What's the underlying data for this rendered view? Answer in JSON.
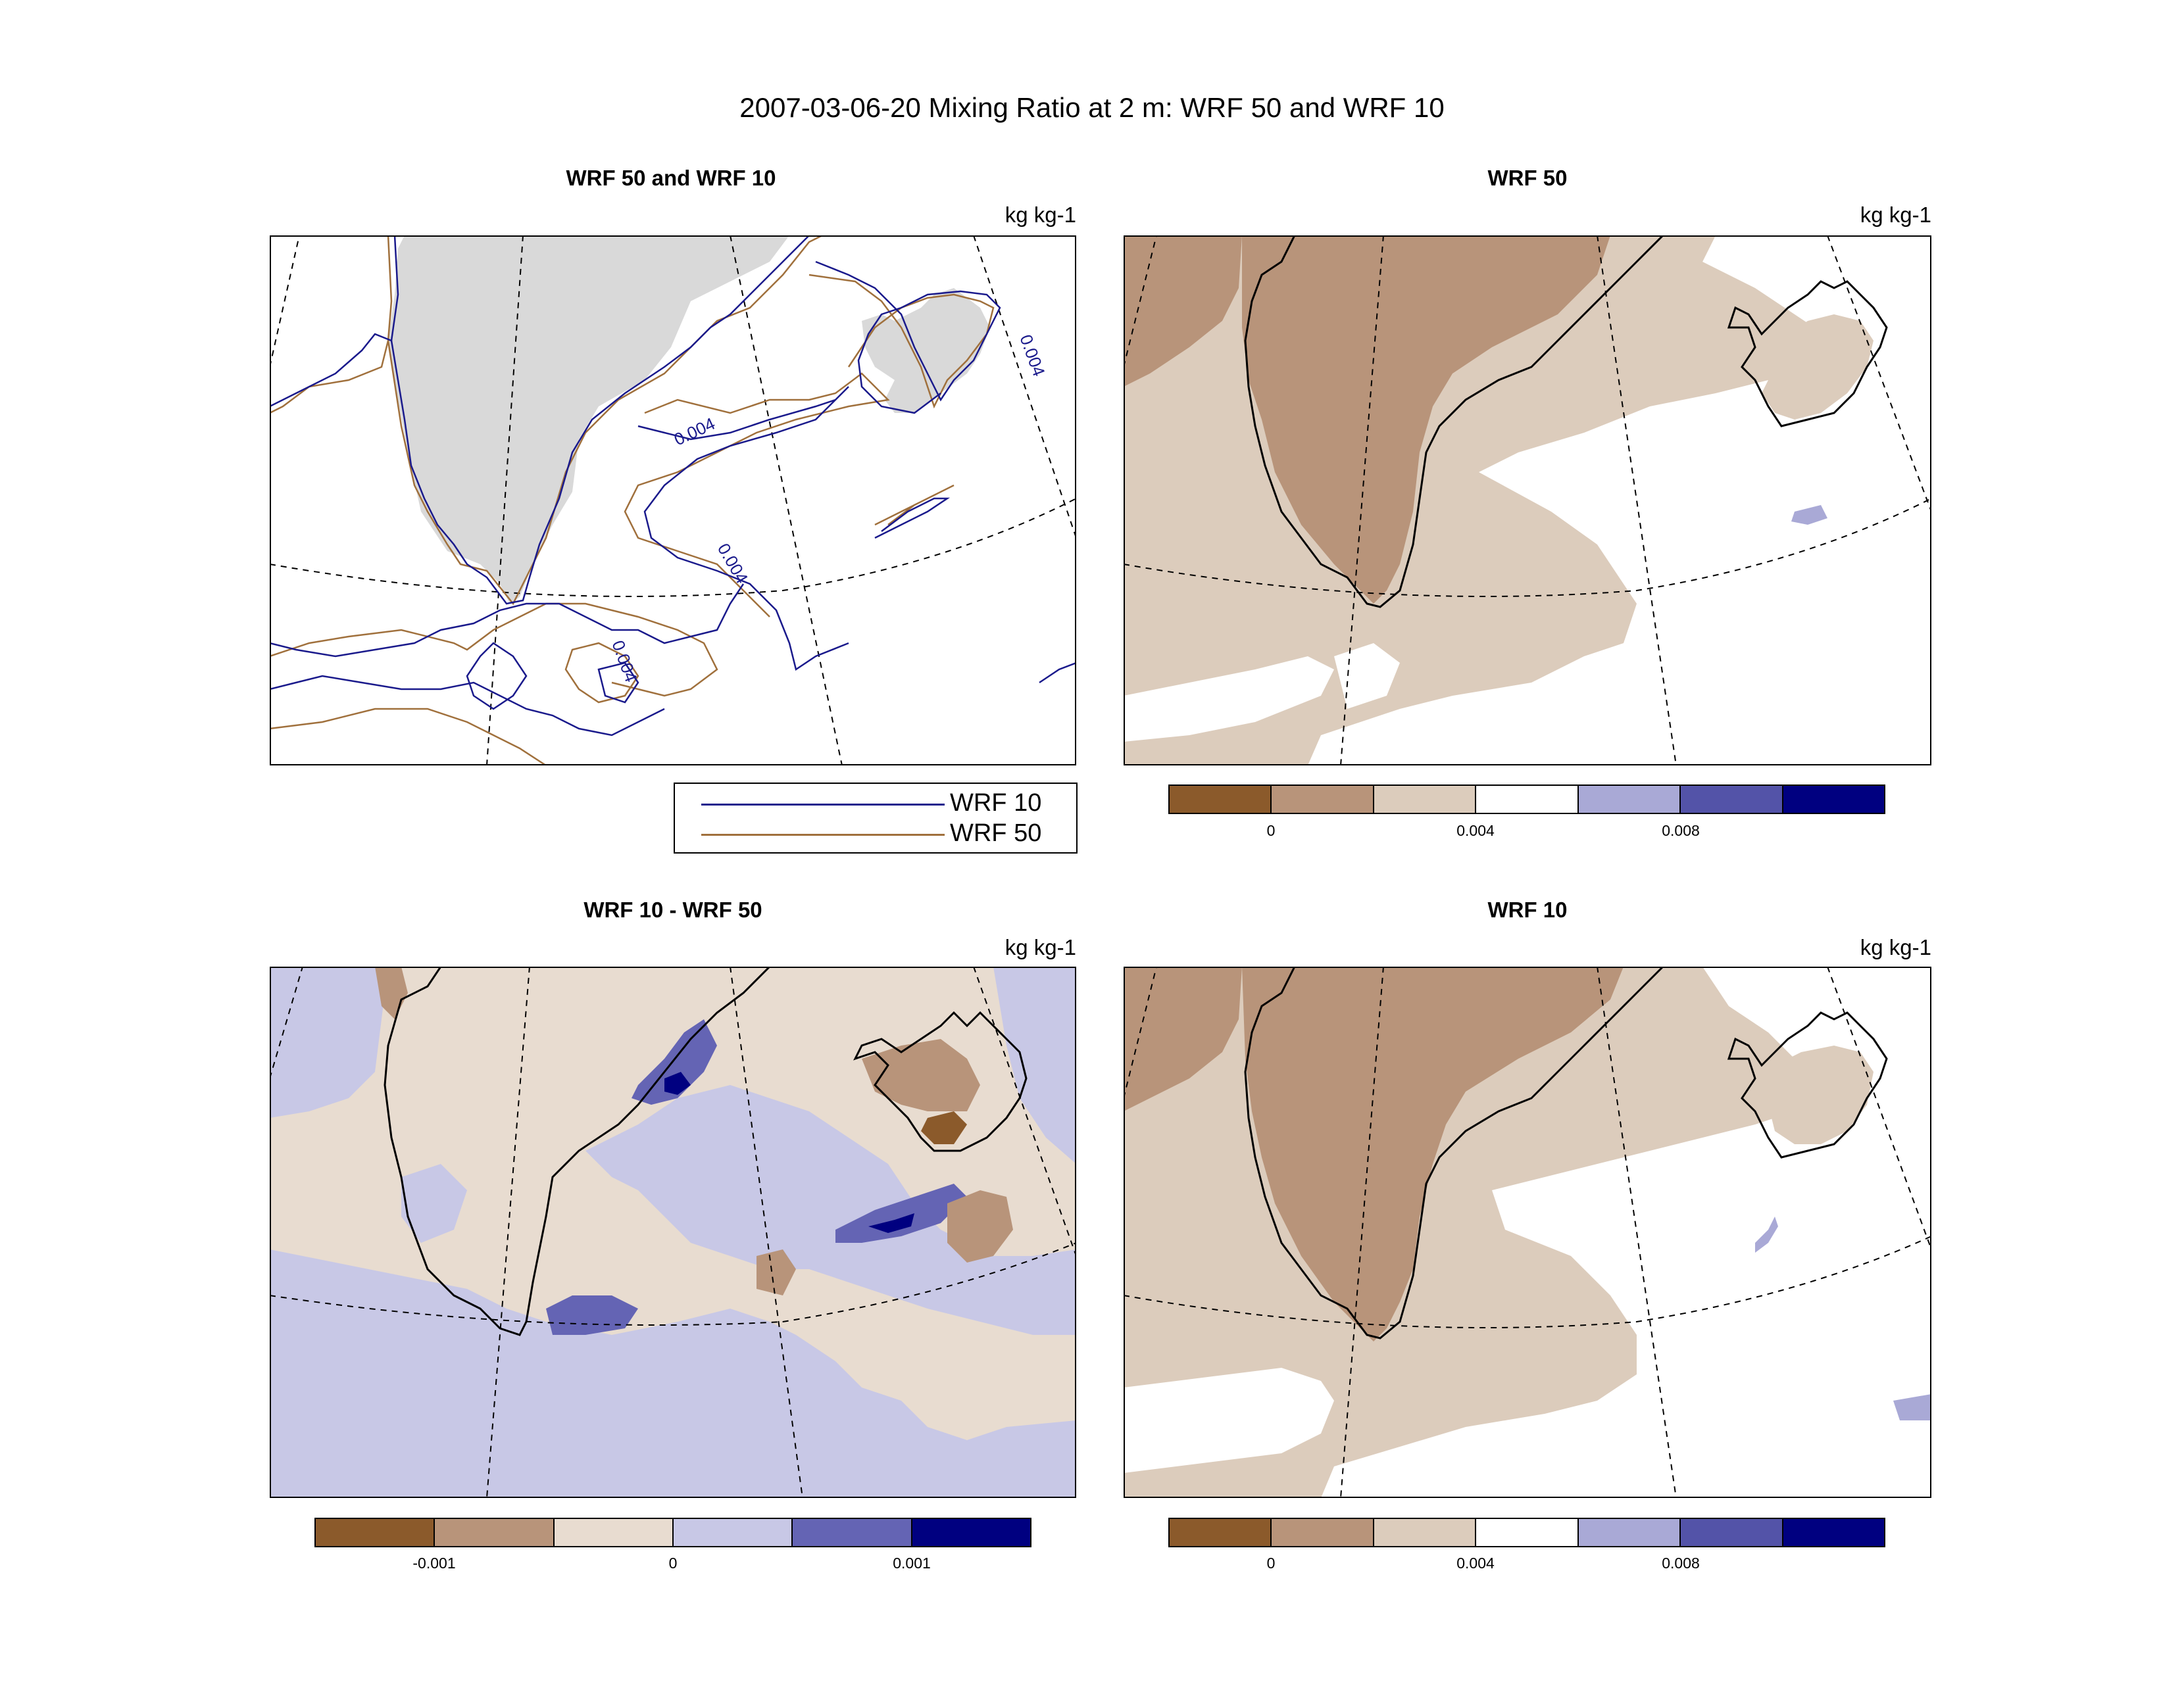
{
  "figure_title": "2007-03-06-20 Mixing Ratio at 2 m: WRF 50 and WRF 10",
  "panels": {
    "compare": {
      "title": "WRF 50 and WRF 10",
      "units": "kg kg-1"
    },
    "wrf50": {
      "title": "WRF 50",
      "units": "kg kg-1"
    },
    "diff": {
      "title": "WRF 10 - WRF 50",
      "units": "kg kg-1"
    },
    "wrf10": {
      "title": "WRF 10",
      "units": "kg kg-1"
    }
  },
  "legend": {
    "items": [
      {
        "label": "WRF 10",
        "color": "#1a1a8c"
      },
      {
        "label": "WRF 50",
        "color": "#a0703c"
      }
    ]
  },
  "colorbars": {
    "mixing_ratio": {
      "colors": [
        "#8b5a2b",
        "#b8947a",
        "#dcccbc",
        "#ffffff",
        "#a9a9d6",
        "#5353a8",
        "#000080"
      ],
      "tick_labels": [
        "0",
        "0.004",
        "0.008"
      ],
      "tick_positions": [
        1,
        3,
        5
      ]
    },
    "difference": {
      "colors": [
        "#8b5a2b",
        "#b8947a",
        "#e8dcd0",
        "#c8c8e6",
        "#6464b4",
        "#000080"
      ],
      "tick_labels": [
        "-0.001",
        "0",
        "0.001"
      ],
      "tick_positions": [
        1,
        3,
        5
      ]
    }
  },
  "contour_labels": [
    "0.004",
    "0.004",
    "0.004",
    "0.004"
  ],
  "colors": {
    "land_gray": "#d9d9d9",
    "wrf10_line": "#1a1a8c",
    "wrf50_line": "#a0703c"
  }
}
